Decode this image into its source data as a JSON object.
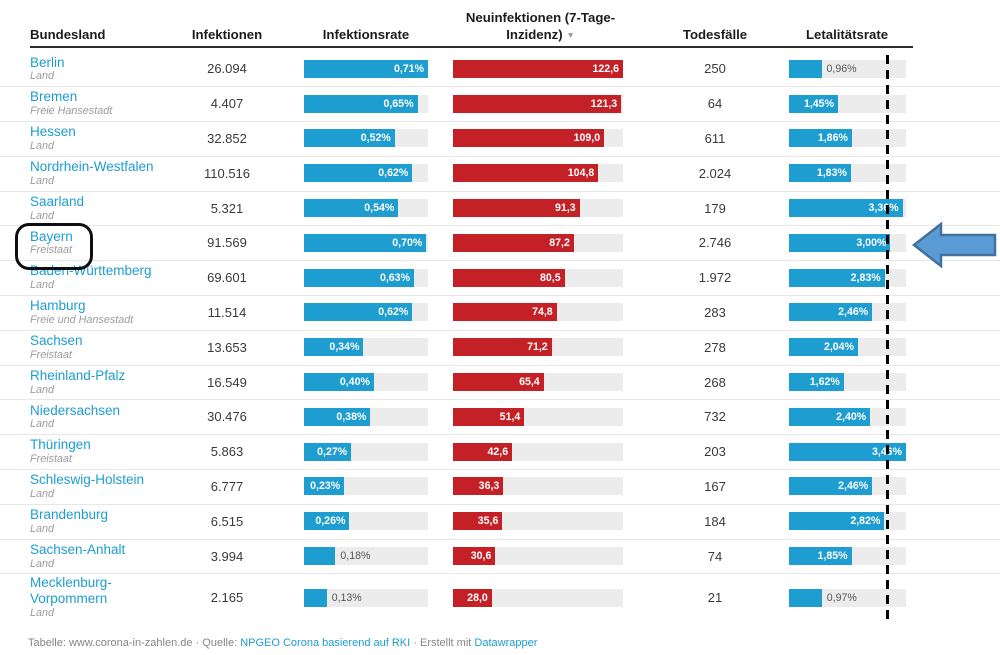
{
  "header": {
    "col_bundesland": "Bundesland",
    "col_infektionen": "Infektionen",
    "col_infektionsrate": "Infektionsrate",
    "col_neuinfektionen_line1": "Neuinfektionen (7-Tage-",
    "col_neuinfektionen_line2": "Inzidenz)",
    "sort_icon": "▼",
    "col_todesfaelle": "Todesfälle",
    "col_letalitaetsrate": "Letalitätsrate"
  },
  "chart_data": {
    "type": "table",
    "columns": [
      "Bundesland",
      "Infektionen",
      "Infektionsrate",
      "Neuinfektionen (7-Tage-Inzidenz)",
      "Todesfälle",
      "Letalitätsrate"
    ],
    "sorted_by": "Neuinfektionen (7-Tage-Inzidenz)",
    "sort_direction": "descending",
    "scales": {
      "infektionsrate_max": 0.71,
      "inzidenz_max": 122.6,
      "letalitaetsrate_max": 3.46,
      "letalitaetsrate_reference_line": 3.0
    },
    "rows": [
      {
        "name": "Berlin",
        "subtitle": "Land",
        "infektionen": "26.094",
        "infektionsrate": 0.71,
        "infektionsrate_label": "0,71%",
        "inzidenz": 122.6,
        "inzidenz_label": "122,6",
        "todesfaelle": "250",
        "letalitaetsrate": 0.96,
        "letalitaetsrate_label": "0,96%"
      },
      {
        "name": "Bremen",
        "subtitle": "Freie Hansestadt",
        "infektionen": "4.407",
        "infektionsrate": 0.65,
        "infektionsrate_label": "0,65%",
        "inzidenz": 121.3,
        "inzidenz_label": "121,3",
        "todesfaelle": "64",
        "letalitaetsrate": 1.45,
        "letalitaetsrate_label": "1,45%"
      },
      {
        "name": "Hessen",
        "subtitle": "Land",
        "infektionen": "32.852",
        "infektionsrate": 0.52,
        "infektionsrate_label": "0,52%",
        "inzidenz": 109.0,
        "inzidenz_label": "109,0",
        "todesfaelle": "611",
        "letalitaetsrate": 1.86,
        "letalitaetsrate_label": "1,86%"
      },
      {
        "name": "Nordrhein-Westfalen",
        "subtitle": "Land",
        "infektionen": "110.516",
        "infektionsrate": 0.62,
        "infektionsrate_label": "0,62%",
        "inzidenz": 104.8,
        "inzidenz_label": "104,8",
        "todesfaelle": "2.024",
        "letalitaetsrate": 1.83,
        "letalitaetsrate_label": "1,83%"
      },
      {
        "name": "Saarland",
        "subtitle": "Land",
        "infektionen": "5.321",
        "infektionsrate": 0.54,
        "infektionsrate_label": "0,54%",
        "inzidenz": 91.3,
        "inzidenz_label": "91,3",
        "todesfaelle": "179",
        "letalitaetsrate": 3.36,
        "letalitaetsrate_label": "3,36%"
      },
      {
        "name": "Bayern",
        "subtitle": "Freistaat",
        "infektionen": "91.569",
        "infektionsrate": 0.7,
        "infektionsrate_label": "0,70%",
        "inzidenz": 87.2,
        "inzidenz_label": "87,2",
        "todesfaelle": "2.746",
        "letalitaetsrate": 3.0,
        "letalitaetsrate_label": "3,00%"
      },
      {
        "name": "Baden-Württemberg",
        "subtitle": "Land",
        "infektionen": "69.601",
        "infektionsrate": 0.63,
        "infektionsrate_label": "0,63%",
        "inzidenz": 80.5,
        "inzidenz_label": "80,5",
        "todesfaelle": "1.972",
        "letalitaetsrate": 2.83,
        "letalitaetsrate_label": "2,83%"
      },
      {
        "name": "Hamburg",
        "subtitle": "Freie und Hansestadt",
        "infektionen": "11.514",
        "infektionsrate": 0.62,
        "infektionsrate_label": "0,62%",
        "inzidenz": 74.8,
        "inzidenz_label": "74,8",
        "todesfaelle": "283",
        "letalitaetsrate": 2.46,
        "letalitaetsrate_label": "2,46%"
      },
      {
        "name": "Sachsen",
        "subtitle": "Freistaat",
        "infektionen": "13.653",
        "infektionsrate": 0.34,
        "infektionsrate_label": "0,34%",
        "inzidenz": 71.2,
        "inzidenz_label": "71,2",
        "todesfaelle": "278",
        "letalitaetsrate": 2.04,
        "letalitaetsrate_label": "2,04%"
      },
      {
        "name": "Rheinland-Pfalz",
        "subtitle": "Land",
        "infektionen": "16.549",
        "infektionsrate": 0.4,
        "infektionsrate_label": "0,40%",
        "inzidenz": 65.4,
        "inzidenz_label": "65,4",
        "todesfaelle": "268",
        "letalitaetsrate": 1.62,
        "letalitaetsrate_label": "1,62%"
      },
      {
        "name": "Niedersachsen",
        "subtitle": "Land",
        "infektionen": "30.476",
        "infektionsrate": 0.38,
        "infektionsrate_label": "0,38%",
        "inzidenz": 51.4,
        "inzidenz_label": "51,4",
        "todesfaelle": "732",
        "letalitaetsrate": 2.4,
        "letalitaetsrate_label": "2,40%"
      },
      {
        "name": "Thüringen",
        "subtitle": "Freistaat",
        "infektionen": "5.863",
        "infektionsrate": 0.27,
        "infektionsrate_label": "0,27%",
        "inzidenz": 42.6,
        "inzidenz_label": "42,6",
        "todesfaelle": "203",
        "letalitaetsrate": 3.46,
        "letalitaetsrate_label": "3,46%"
      },
      {
        "name": "Schleswig-Holstein",
        "subtitle": "Land",
        "infektionen": "6.777",
        "infektionsrate": 0.23,
        "infektionsrate_label": "0,23%",
        "inzidenz": 36.3,
        "inzidenz_label": "36,3",
        "todesfaelle": "167",
        "letalitaetsrate": 2.46,
        "letalitaetsrate_label": "2,46%"
      },
      {
        "name": "Brandenburg",
        "subtitle": "Land",
        "infektionen": "6.515",
        "infektionsrate": 0.26,
        "infektionsrate_label": "0,26%",
        "inzidenz": 35.6,
        "inzidenz_label": "35,6",
        "todesfaelle": "184",
        "letalitaetsrate": 2.82,
        "letalitaetsrate_label": "2,82%"
      },
      {
        "name": "Sachsen-Anhalt",
        "subtitle": "Land",
        "infektionen": "3.994",
        "infektionsrate": 0.18,
        "infektionsrate_label": "0,18%",
        "inzidenz": 30.6,
        "inzidenz_label": "30,6",
        "todesfaelle": "74",
        "letalitaetsrate": 1.85,
        "letalitaetsrate_label": "1,85%"
      },
      {
        "name": "Mecklenburg-Vorpommern",
        "subtitle": "Land",
        "infektionen": "2.165",
        "infektionsrate": 0.13,
        "infektionsrate_label": "0,13%",
        "inzidenz": 28.0,
        "inzidenz_label": "28,0",
        "todesfaelle": "21",
        "letalitaetsrate": 0.97,
        "letalitaetsrate_label": "0,97%"
      }
    ]
  },
  "annotations": {
    "circled_state": "Bayern",
    "arrow_points_to_row": "Bayern"
  },
  "colors": {
    "bar_blue": "#1d9dd0",
    "bar_red": "#c42127",
    "bar_track": "#ececec",
    "link_blue": "#1d9dd0",
    "arrow_fill": "#5b9bd5",
    "arrow_stroke": "#41719c"
  },
  "footer": {
    "prefix": "Tabelle: www.corona-in-zahlen.de",
    "sep1": "·",
    "quelle_label": "Quelle:",
    "source_link": "NPGEO Corona basierend auf RKI",
    "sep2": "·",
    "erstellt_label": "Erstellt mit",
    "tool_link": "Datawrapper"
  }
}
